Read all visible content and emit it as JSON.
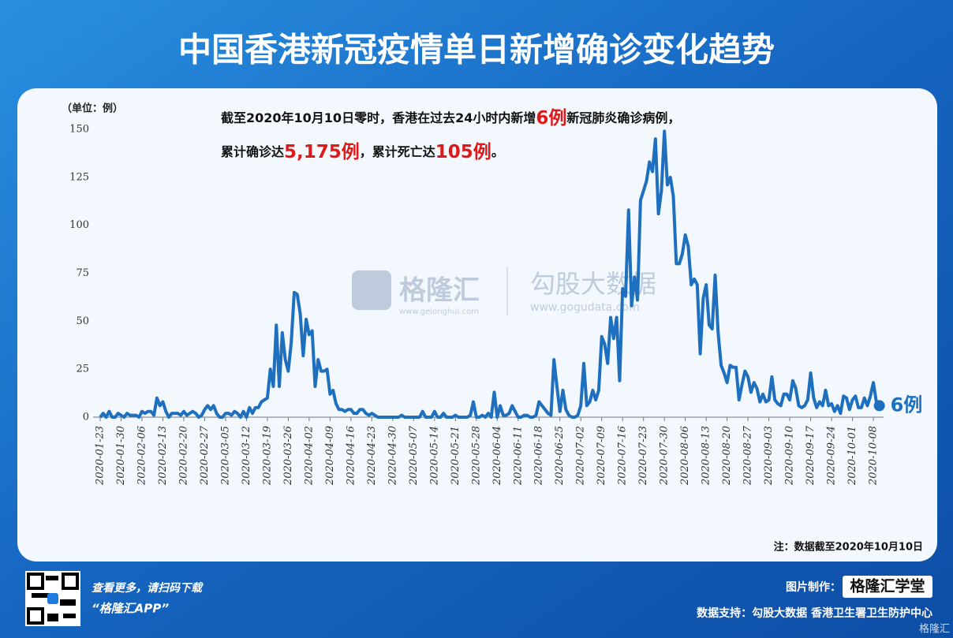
{
  "title": "中国香港新冠疫情单日新增确诊变化趋势",
  "annotation": {
    "line1": [
      "截至2020年10月10日零时，香港在过去24小时内新增",
      "6例",
      "新冠肺炎确诊病例，"
    ],
    "line2": [
      "累计确诊达",
      "5,175例",
      "，累计死亡达",
      "105例",
      "。"
    ]
  },
  "watermarks": [
    "格隆汇",
    "www.gelonghui.com",
    "勾股大数据",
    "www.gogudata.com"
  ],
  "note": "注：数据截至2020年10月10日",
  "footer": {
    "scan": "查看更多，请扫码下载",
    "app": "“格隆汇APP”",
    "maker_label": "图片制作：",
    "maker": "格隆汇学堂",
    "source": "数据支持：勾股大数据 香港卫生署卫生防护中心",
    "corner": "格隆汇"
  },
  "chart_data": {
    "type": "line",
    "y_unit": "（单位：例）",
    "color": "#1f6fbf",
    "ylim": [
      0,
      150
    ],
    "yticks": [
      0,
      25,
      50,
      75,
      100,
      125,
      150
    ],
    "end_label": "6例",
    "categories": [
      "2020-01-23",
      null,
      null,
      null,
      null,
      null,
      null,
      "2020-01-30",
      null,
      null,
      null,
      null,
      null,
      null,
      "2020-02-06",
      null,
      null,
      null,
      null,
      null,
      null,
      "2020-02-13",
      null,
      null,
      null,
      null,
      null,
      null,
      "2020-02-20",
      null,
      null,
      null,
      null,
      null,
      null,
      "2020-02-27",
      null,
      null,
      null,
      null,
      null,
      null,
      "2020-03-05",
      null,
      null,
      null,
      null,
      null,
      null,
      "2020-03-12",
      null,
      null,
      null,
      null,
      null,
      null,
      "2020-03-19",
      null,
      null,
      null,
      null,
      null,
      null,
      "2020-03-26",
      null,
      null,
      null,
      null,
      null,
      null,
      "2020-04-02",
      null,
      null,
      null,
      null,
      null,
      null,
      "2020-04-09",
      null,
      null,
      null,
      null,
      null,
      null,
      "2020-04-16",
      null,
      null,
      null,
      null,
      null,
      null,
      "2020-04-23",
      null,
      null,
      null,
      null,
      null,
      null,
      "2020-04-30",
      null,
      null,
      null,
      null,
      null,
      null,
      "2020-05-07",
      null,
      null,
      null,
      null,
      null,
      null,
      "2020-05-14",
      null,
      null,
      null,
      null,
      null,
      null,
      "2020-05-21",
      null,
      null,
      null,
      null,
      null,
      null,
      "2020-05-28",
      null,
      null,
      null,
      null,
      null,
      null,
      "2020-06-04",
      null,
      null,
      null,
      null,
      null,
      null,
      "2020-06-11",
      null,
      null,
      null,
      null,
      null,
      null,
      "2020-06-18",
      null,
      null,
      null,
      null,
      null,
      null,
      "2020-06-25",
      null,
      null,
      null,
      null,
      null,
      null,
      "2020-07-02",
      null,
      null,
      null,
      null,
      null,
      null,
      "2020-07-09",
      null,
      null,
      null,
      null,
      null,
      null,
      "2020-07-16",
      null,
      null,
      null,
      null,
      null,
      null,
      "2020-07-23",
      null,
      null,
      null,
      null,
      null,
      null,
      "2020-07-30",
      null,
      null,
      null,
      null,
      null,
      null,
      "2020-08-06",
      null,
      null,
      null,
      null,
      null,
      null,
      "2020-08-13",
      null,
      null,
      null,
      null,
      null,
      null,
      "2020-08-20",
      null,
      null,
      null,
      null,
      null,
      null,
      "2020-08-27",
      null,
      null,
      null,
      null,
      null,
      null,
      "2020-09-03",
      null,
      null,
      null,
      null,
      null,
      null,
      "2020-09-10",
      null,
      null,
      null,
      null,
      null,
      null,
      "2020-09-17",
      null,
      null,
      null,
      null,
      null,
      null,
      "2020-09-24",
      null,
      null,
      null,
      null,
      null,
      null,
      "2020-10-01",
      null,
      null,
      null,
      null,
      null,
      null,
      "2020-10-08",
      null,
      null
    ],
    "values": [
      0,
      2,
      0,
      3,
      0,
      0,
      2,
      1,
      0,
      2,
      1,
      1,
      1,
      0,
      3,
      2,
      3,
      3,
      1,
      10,
      6,
      8,
      3,
      0,
      2,
      2,
      2,
      1,
      3,
      1,
      2,
      3,
      2,
      0,
      1,
      4,
      6,
      4,
      6,
      2,
      0,
      0,
      2,
      2,
      1,
      3,
      2,
      0,
      3,
      0,
      5,
      2,
      5,
      5,
      8,
      9,
      10,
      25,
      16,
      48,
      16,
      44,
      30,
      24,
      39,
      65,
      64,
      54,
      32,
      51,
      43,
      45,
      16,
      30,
      24,
      24,
      25,
      12,
      14,
      7,
      4,
      4,
      3,
      4,
      4,
      2,
      2,
      4,
      4,
      2,
      1,
      2,
      1,
      0,
      0,
      0,
      0,
      0,
      0,
      0,
      0,
      1,
      0,
      0,
      0,
      0,
      0,
      0,
      3,
      0,
      0,
      0,
      3,
      0,
      0,
      2,
      0,
      0,
      0,
      1,
      0,
      0,
      0,
      0,
      1,
      8,
      0,
      0,
      1,
      0,
      2,
      0,
      13,
      0,
      6,
      1,
      1,
      2,
      6,
      3,
      0,
      0,
      1,
      1,
      0,
      0,
      1,
      8,
      6,
      4,
      2,
      1,
      30,
      16,
      3,
      14,
      4,
      1,
      0,
      0,
      1,
      6,
      28,
      6,
      8,
      14,
      9,
      14,
      42,
      38,
      28,
      52,
      41,
      52,
      19,
      67,
      63,
      108,
      58,
      73,
      61,
      113,
      118,
      123,
      133,
      128,
      145,
      106,
      118,
      149,
      121,
      125,
      115,
      80,
      80,
      85,
      95,
      89,
      69,
      72,
      69,
      33,
      62,
      69,
      48,
      46,
      74,
      44,
      27,
      23,
      18,
      27,
      26,
      26,
      9,
      17,
      24,
      21,
      13,
      18,
      15,
      8,
      12,
      8,
      9,
      21,
      9,
      7,
      6,
      12,
      12,
      9,
      19,
      15,
      6,
      5,
      6,
      9,
      23,
      10,
      5,
      8,
      6,
      14,
      6,
      7,
      3,
      6,
      2,
      11,
      10,
      4,
      9,
      11,
      5,
      5,
      10,
      6,
      11,
      18,
      8,
      6
    ]
  }
}
